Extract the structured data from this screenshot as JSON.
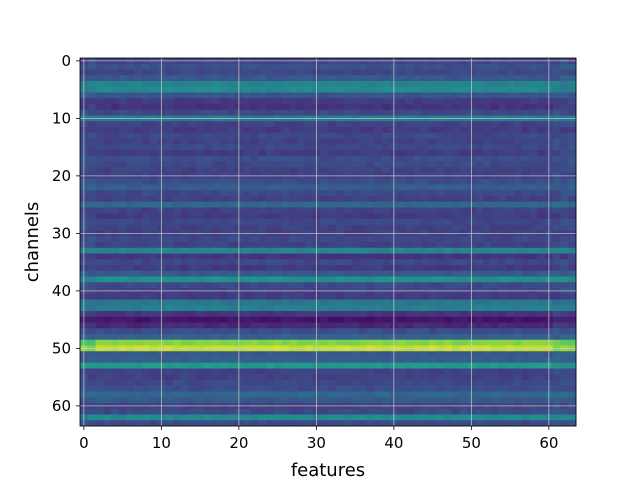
{
  "chart_data": {
    "type": "heatmap",
    "title": "",
    "xlabel": "features",
    "ylabel": "channels",
    "x_range": [
      -0.5,
      63.5
    ],
    "y_range": [
      63.5,
      -0.5
    ],
    "y_inverted": true,
    "grid": true,
    "colormap": "viridis",
    "n_rows": 64,
    "n_cols": 64,
    "x_ticks": [
      0,
      10,
      20,
      30,
      40,
      50,
      60
    ],
    "y_ticks": [
      0,
      10,
      20,
      30,
      40,
      50,
      60
    ],
    "row_intensity": [
      0.2,
      0.25,
      0.22,
      0.28,
      0.45,
      0.48,
      0.26,
      0.18,
      0.15,
      0.22,
      0.42,
      0.2,
      0.18,
      0.22,
      0.2,
      0.22,
      0.18,
      0.24,
      0.22,
      0.2,
      0.2,
      0.24,
      0.3,
      0.22,
      0.2,
      0.34,
      0.2,
      0.18,
      0.22,
      0.2,
      0.2,
      0.22,
      0.2,
      0.46,
      0.16,
      0.22,
      0.18,
      0.28,
      0.5,
      0.22,
      0.2,
      0.18,
      0.4,
      0.44,
      0.16,
      0.06,
      0.12,
      0.24,
      0.32,
      0.82,
      0.92,
      0.28,
      0.3,
      0.54,
      0.2,
      0.2,
      0.22,
      0.24,
      0.34,
      0.28,
      0.2,
      0.22,
      0.48,
      0.22
    ]
  }
}
